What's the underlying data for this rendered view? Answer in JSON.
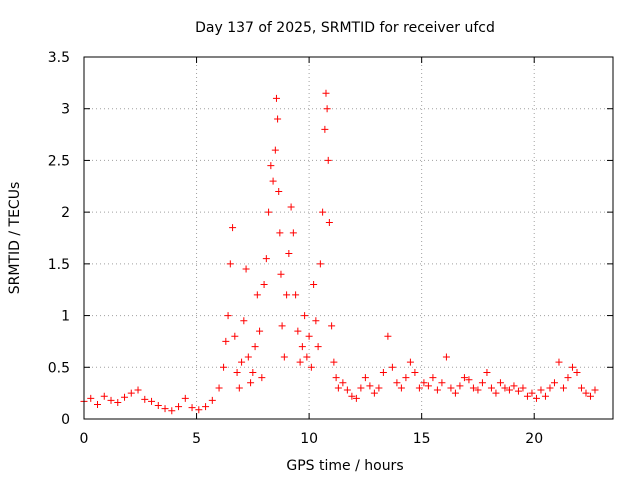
{
  "chart_data": {
    "type": "scatter",
    "title": "Day 137 of 2025, SRMTID for receiver ufcd",
    "xlabel": "GPS time / hours",
    "ylabel": "SRMTID / TECUs",
    "xlim": [
      0,
      23.5
    ],
    "ylim": [
      0,
      3.5
    ],
    "xticks": [
      0,
      5,
      10,
      15,
      20
    ],
    "xtick_labels": [
      "0",
      "5",
      "10",
      "15",
      "20"
    ],
    "yticks": [
      0,
      0.5,
      1,
      1.5,
      2,
      2.5,
      3,
      3.5
    ],
    "ytick_labels": [
      "0",
      "0.5",
      "1",
      "1.5",
      "2",
      "2.5",
      "3",
      "3.5"
    ],
    "grid": true,
    "marker": "+",
    "color": "#ff0000",
    "series": [
      {
        "name": "SRMTID",
        "x": [
          0.0,
          0.3,
          0.6,
          0.9,
          1.2,
          1.5,
          1.8,
          2.1,
          2.4,
          2.7,
          3.0,
          3.3,
          3.6,
          3.9,
          4.2,
          4.5,
          4.8,
          5.1,
          5.4,
          5.7,
          6.0,
          6.2,
          6.3,
          6.4,
          6.5,
          6.6,
          6.7,
          6.8,
          6.9,
          7.0,
          7.1,
          7.2,
          7.3,
          7.4,
          7.5,
          7.6,
          7.7,
          7.8,
          7.9,
          8.0,
          8.1,
          8.2,
          8.3,
          8.4,
          8.5,
          8.55,
          8.6,
          8.65,
          8.7,
          8.75,
          8.8,
          8.9,
          9.0,
          9.1,
          9.2,
          9.3,
          9.4,
          9.5,
          9.6,
          9.7,
          9.8,
          9.9,
          10.0,
          10.1,
          10.2,
          10.3,
          10.4,
          10.5,
          10.6,
          10.7,
          10.75,
          10.8,
          10.85,
          10.9,
          11.0,
          11.1,
          11.2,
          11.3,
          11.5,
          11.7,
          11.9,
          12.1,
          12.3,
          12.5,
          12.7,
          12.9,
          13.1,
          13.3,
          13.5,
          13.7,
          13.9,
          14.1,
          14.3,
          14.5,
          14.7,
          14.9,
          15.1,
          15.3,
          15.5,
          15.7,
          15.9,
          16.1,
          16.3,
          16.5,
          16.7,
          16.9,
          17.1,
          17.3,
          17.5,
          17.7,
          17.9,
          18.1,
          18.3,
          18.5,
          18.7,
          18.9,
          19.1,
          19.3,
          19.5,
          19.7,
          19.9,
          20.1,
          20.3,
          20.5,
          20.7,
          20.9,
          21.1,
          21.3,
          21.5,
          21.7,
          21.9,
          22.1,
          22.3,
          22.5,
          22.7
        ],
        "y": [
          0.17,
          0.2,
          0.14,
          0.22,
          0.18,
          0.16,
          0.21,
          0.25,
          0.28,
          0.19,
          0.17,
          0.13,
          0.1,
          0.08,
          0.12,
          0.2,
          0.11,
          0.09,
          0.12,
          0.18,
          0.3,
          0.5,
          0.75,
          1.0,
          1.5,
          1.85,
          0.8,
          0.45,
          0.3,
          0.55,
          0.95,
          1.45,
          0.6,
          0.35,
          0.45,
          0.7,
          1.2,
          0.85,
          0.4,
          1.3,
          1.55,
          2.0,
          2.45,
          2.3,
          2.6,
          3.1,
          2.9,
          2.2,
          1.8,
          1.4,
          0.9,
          0.6,
          1.2,
          1.6,
          2.05,
          1.8,
          1.2,
          0.85,
          0.55,
          0.7,
          1.0,
          0.6,
          0.8,
          0.5,
          1.3,
          0.95,
          0.7,
          1.5,
          2.0,
          2.8,
          3.15,
          3.0,
          2.5,
          1.9,
          0.9,
          0.55,
          0.4,
          0.3,
          0.35,
          0.28,
          0.22,
          0.2,
          0.3,
          0.4,
          0.32,
          0.25,
          0.3,
          0.45,
          0.8,
          0.5,
          0.35,
          0.3,
          0.4,
          0.55,
          0.45,
          0.3,
          0.35,
          0.32,
          0.4,
          0.28,
          0.35,
          0.6,
          0.3,
          0.25,
          0.32,
          0.4,
          0.38,
          0.3,
          0.28,
          0.35,
          0.45,
          0.3,
          0.25,
          0.35,
          0.3,
          0.28,
          0.32,
          0.27,
          0.3,
          0.22,
          0.25,
          0.2,
          0.28,
          0.22,
          0.3,
          0.35,
          0.55,
          0.3,
          0.4,
          0.5,
          0.45,
          0.3,
          0.25,
          0.22,
          0.28
        ]
      }
    ]
  }
}
